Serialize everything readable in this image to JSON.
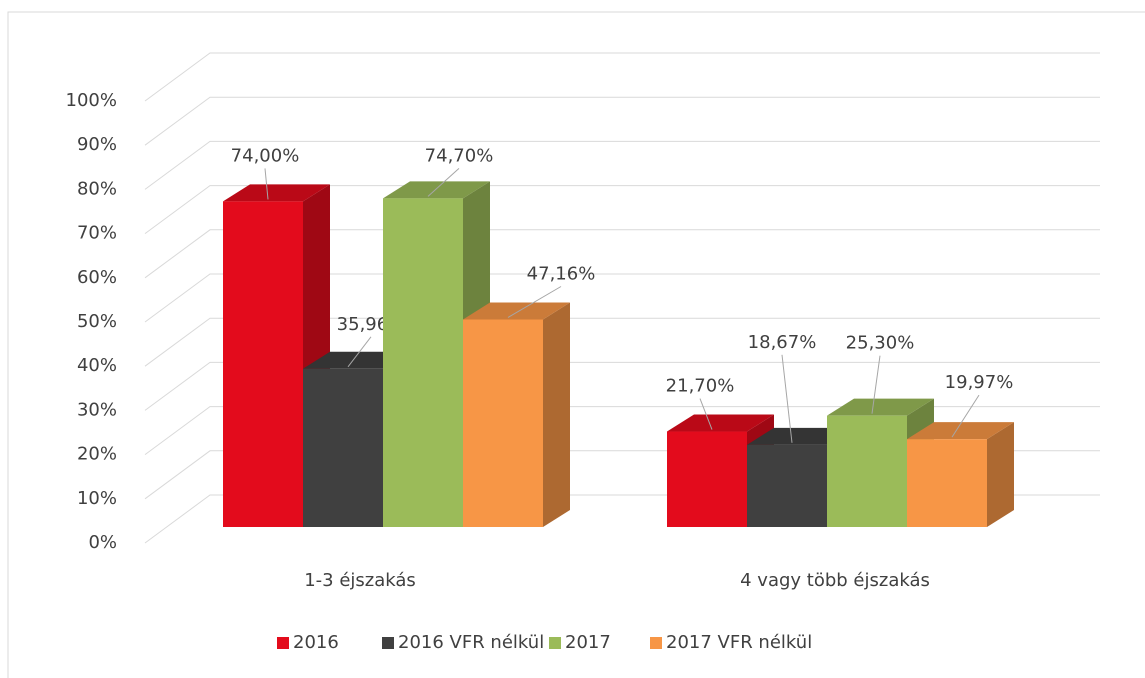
{
  "chart_data": {
    "type": "bar3d",
    "categories": [
      "1-3 éjszakás",
      "4 vagy több éjszakás"
    ],
    "series": [
      {
        "name": "2016",
        "color": "#e30b1c",
        "values": [
          74.0,
          21.7
        ],
        "value_labels": [
          "74,00%",
          "21,70%"
        ]
      },
      {
        "name": "2016 VFR nélkül",
        "color": "#404040",
        "values": [
          35.96,
          18.67
        ],
        "value_labels": [
          "35,96%",
          "18,67%"
        ]
      },
      {
        "name": "2017",
        "color": "#9bbb59",
        "values": [
          74.7,
          25.3
        ],
        "value_labels": [
          "74,70%",
          "25,30%"
        ]
      },
      {
        "name": "2017 VFR nélkül",
        "color": "#f79646",
        "values": [
          47.16,
          19.97
        ],
        "value_labels": [
          "47,16%",
          "19,97%"
        ]
      }
    ],
    "ylim": [
      0,
      100
    ],
    "yticks": [
      {
        "value": 0,
        "label": "0%"
      },
      {
        "value": 10,
        "label": "10%"
      },
      {
        "value": 20,
        "label": "20%"
      },
      {
        "value": 30,
        "label": "30%"
      },
      {
        "value": 40,
        "label": "40%"
      },
      {
        "value": 50,
        "label": "50%"
      },
      {
        "value": 60,
        "label": "60%"
      },
      {
        "value": 70,
        "label": "70%"
      },
      {
        "value": 80,
        "label": "80%"
      },
      {
        "value": 90,
        "label": "90%"
      },
      {
        "value": 100,
        "label": "100%"
      }
    ],
    "grid": true,
    "legend": "bottom"
  }
}
